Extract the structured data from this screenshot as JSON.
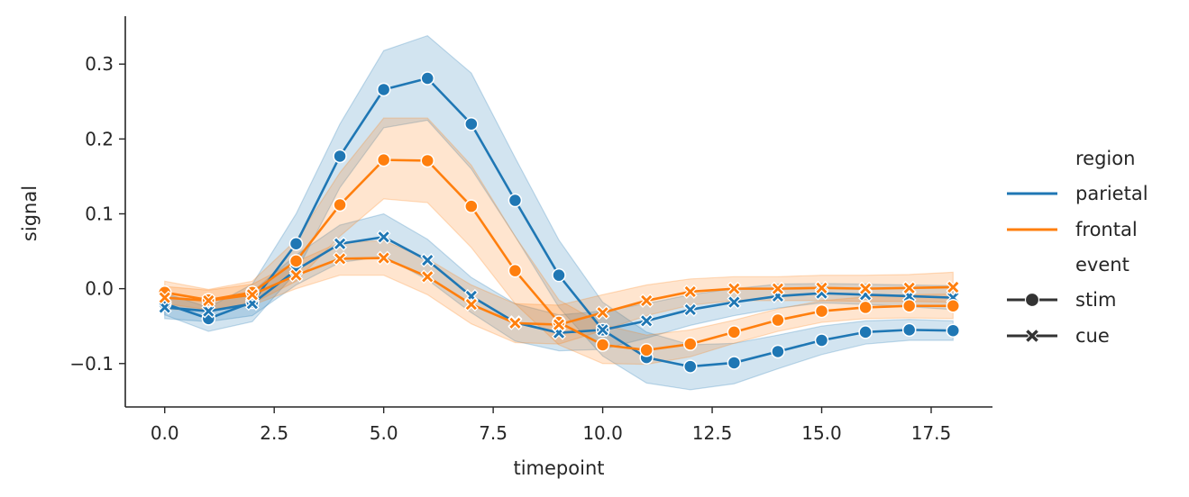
{
  "chart_data": {
    "type": "line",
    "xlabel": "timepoint",
    "ylabel": "signal",
    "xlim": [
      -0.9,
      18.9
    ],
    "ylim": [
      -0.158,
      0.364
    ],
    "xticks": [
      "0.0",
      "2.5",
      "5.0",
      "7.5",
      "10.0",
      "12.5",
      "15.0",
      "17.5"
    ],
    "yticks": [
      "−0.1",
      "0.0",
      "0.1",
      "0.2",
      "0.3"
    ],
    "grid": false,
    "legend_placement": "right",
    "legend": {
      "hue_title": "region",
      "hue_entries": [
        "parietal",
        "frontal"
      ],
      "style_title": "event",
      "style_entries": [
        "stim",
        "cue"
      ]
    },
    "colors": {
      "parietal": "#1f77b4",
      "frontal": "#ff7f0e",
      "legend_marker": "#333333"
    },
    "x": [
      0,
      1,
      2,
      3,
      4,
      5,
      6,
      7,
      8,
      9,
      10,
      11,
      12,
      13,
      14,
      15,
      16,
      17,
      18
    ],
    "series": [
      {
        "region": "parietal",
        "event": "stim",
        "marker": "circle",
        "values": [
          -0.02,
          -0.04,
          -0.018,
          0.06,
          0.177,
          0.266,
          0.281,
          0.22,
          0.118,
          0.018,
          -0.055,
          -0.092,
          -0.104,
          -0.099,
          -0.084,
          -0.069,
          -0.058,
          -0.055,
          -0.056
        ],
        "ci_low": [
          -0.035,
          -0.057,
          -0.044,
          0.022,
          0.135,
          0.215,
          0.225,
          0.16,
          0.07,
          -0.025,
          -0.09,
          -0.126,
          -0.135,
          -0.127,
          -0.107,
          -0.088,
          -0.074,
          -0.069,
          -0.069
        ],
        "ci_high": [
          -0.006,
          -0.025,
          0.006,
          0.1,
          0.22,
          0.318,
          0.338,
          0.288,
          0.175,
          0.065,
          -0.018,
          -0.058,
          -0.075,
          -0.073,
          -0.062,
          -0.05,
          -0.043,
          -0.041,
          -0.043
        ]
      },
      {
        "region": "parietal",
        "event": "cue",
        "marker": "x",
        "values": [
          -0.025,
          -0.03,
          -0.02,
          0.025,
          0.06,
          0.069,
          0.038,
          -0.01,
          -0.045,
          -0.059,
          -0.055,
          -0.043,
          -0.028,
          -0.018,
          -0.01,
          -0.006,
          -0.008,
          -0.01,
          -0.012
        ],
        "ci_low": [
          -0.04,
          -0.044,
          -0.036,
          0.005,
          0.035,
          0.043,
          0.012,
          -0.032,
          -0.07,
          -0.083,
          -0.081,
          -0.066,
          -0.049,
          -0.036,
          -0.026,
          -0.019,
          -0.021,
          -0.024,
          -0.028
        ],
        "ci_high": [
          -0.01,
          -0.016,
          -0.004,
          0.045,
          0.085,
          0.1,
          0.066,
          0.015,
          -0.02,
          -0.035,
          -0.03,
          -0.02,
          -0.008,
          0.0,
          0.006,
          0.007,
          0.006,
          0.005,
          0.004
        ]
      },
      {
        "region": "frontal",
        "event": "stim",
        "marker": "circle",
        "values": [
          -0.005,
          -0.015,
          -0.005,
          0.037,
          0.112,
          0.172,
          0.171,
          0.11,
          0.024,
          -0.045,
          -0.075,
          -0.082,
          -0.074,
          -0.058,
          -0.042,
          -0.03,
          -0.025,
          -0.023,
          -0.023
        ],
        "ci_low": [
          -0.02,
          -0.028,
          -0.02,
          0.01,
          0.07,
          0.12,
          0.115,
          0.055,
          -0.02,
          -0.075,
          -0.1,
          -0.101,
          -0.091,
          -0.073,
          -0.057,
          -0.045,
          -0.04,
          -0.039,
          -0.04
        ],
        "ci_high": [
          0.01,
          -0.001,
          0.01,
          0.065,
          0.155,
          0.228,
          0.228,
          0.165,
          0.07,
          -0.015,
          -0.048,
          -0.062,
          -0.055,
          -0.042,
          -0.027,
          -0.016,
          -0.011,
          -0.008,
          -0.007
        ]
      },
      {
        "region": "frontal",
        "event": "cue",
        "marker": "x",
        "values": [
          -0.012,
          -0.016,
          -0.008,
          0.018,
          0.04,
          0.041,
          0.016,
          -0.021,
          -0.046,
          -0.048,
          -0.032,
          -0.016,
          -0.004,
          0.0,
          0.0,
          0.001,
          0.0,
          0.001,
          0.002
        ],
        "ci_low": [
          -0.027,
          -0.03,
          -0.022,
          0.0,
          0.018,
          0.018,
          -0.008,
          -0.047,
          -0.072,
          -0.074,
          -0.056,
          -0.036,
          -0.022,
          -0.016,
          -0.016,
          -0.016,
          -0.017,
          -0.017,
          -0.018
        ],
        "ci_high": [
          0.003,
          -0.002,
          0.006,
          0.036,
          0.062,
          0.064,
          0.04,
          0.005,
          -0.02,
          -0.022,
          -0.008,
          0.005,
          0.013,
          0.016,
          0.016,
          0.018,
          0.018,
          0.019,
          0.022
        ]
      }
    ]
  }
}
